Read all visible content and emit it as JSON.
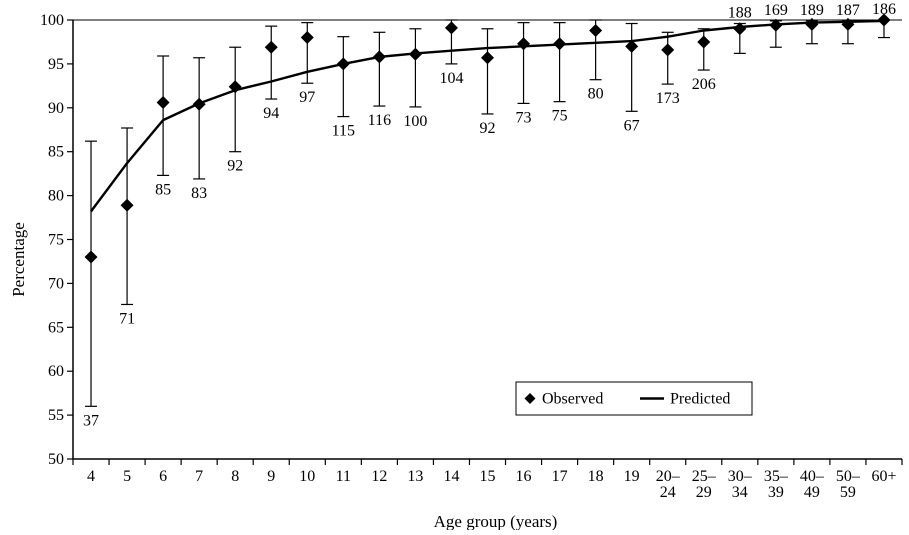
{
  "chart_data": {
    "type": "line",
    "xlabel": "Age group (years)",
    "ylabel": "Percentage",
    "ylim": [
      50,
      100
    ],
    "yticks": [
      50,
      55,
      60,
      65,
      70,
      75,
      80,
      85,
      90,
      95,
      100
    ],
    "categories": [
      [
        "4"
      ],
      [
        "5"
      ],
      [
        "6"
      ],
      [
        "7"
      ],
      [
        "8"
      ],
      [
        "9"
      ],
      [
        "10"
      ],
      [
        "11"
      ],
      [
        "12"
      ],
      [
        "13"
      ],
      [
        "14"
      ],
      [
        "15"
      ],
      [
        "16"
      ],
      [
        "17"
      ],
      [
        "18"
      ],
      [
        "19"
      ],
      [
        "20–",
        "24"
      ],
      [
        "25–",
        "29"
      ],
      [
        "30–",
        "34"
      ],
      [
        "35–",
        "39"
      ],
      [
        "40–",
        "49"
      ],
      [
        "50–",
        "59"
      ],
      [
        "60+"
      ]
    ],
    "series": [
      {
        "name": "Observed",
        "style": "diamond-markers-with-error-bars",
        "values": [
          73.0,
          78.9,
          90.6,
          90.4,
          92.4,
          96.9,
          98.0,
          95.0,
          95.8,
          96.1,
          99.1,
          95.7,
          97.3,
          97.3,
          98.8,
          97.0,
          96.6,
          97.5,
          99.0,
          99.4,
          99.5,
          99.5,
          100.0
        ],
        "ci_low": [
          56.0,
          67.6,
          82.3,
          81.9,
          85.0,
          91.0,
          92.8,
          89.0,
          90.2,
          90.1,
          95.0,
          89.3,
          90.5,
          90.7,
          93.2,
          89.6,
          92.7,
          94.3,
          96.2,
          96.9,
          97.3,
          97.3,
          98.0
        ],
        "ci_high": [
          86.2,
          87.7,
          95.9,
          95.7,
          96.9,
          99.3,
          99.7,
          98.1,
          98.6,
          99.0,
          100.0,
          99.0,
          99.7,
          99.7,
          100.0,
          99.6,
          98.6,
          99.0,
          99.6,
          99.9,
          99.9,
          99.9,
          100.0
        ],
        "n": [
          37,
          71,
          85,
          83,
          92,
          94,
          97,
          115,
          116,
          100,
          104,
          92,
          73,
          75,
          80,
          67,
          173,
          206,
          188,
          169,
          189,
          187,
          186
        ],
        "n_label_pos": [
          "below",
          "below",
          "below",
          "below",
          "below",
          "below",
          "below",
          "below",
          "below",
          "below",
          "below",
          "below",
          "below",
          "below",
          "below",
          "below",
          "below",
          "below",
          "above",
          "above",
          "above",
          "above",
          "above"
        ]
      },
      {
        "name": "Predicted",
        "style": "solid-line",
        "values": [
          78.2,
          83.7,
          88.6,
          90.5,
          92.0,
          93.0,
          94.1,
          95.0,
          95.8,
          96.2,
          96.5,
          96.8,
          97.0,
          97.2,
          97.4,
          97.6,
          98.1,
          98.8,
          99.2,
          99.5,
          99.7,
          99.8,
          99.9
        ]
      }
    ],
    "legend": {
      "position": "bottom-right-inside",
      "entries": [
        "Observed",
        "Predicted"
      ]
    },
    "grid": false
  }
}
